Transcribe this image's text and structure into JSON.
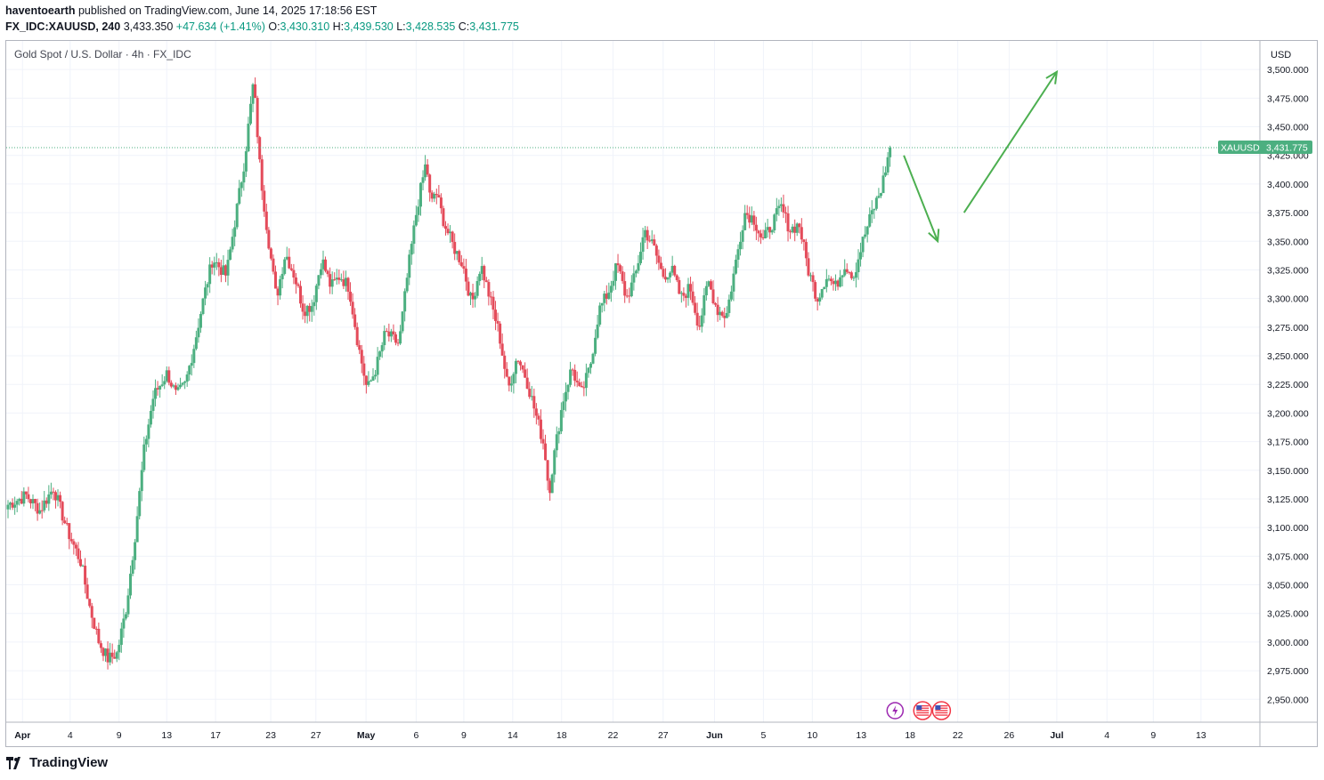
{
  "header": {
    "author": "haventoearth",
    "published_text": "published on TradingView.com, June 14, 2025 17:18:56 EST",
    "symbol_interval": "FX_IDC:XAUUSD, 240",
    "last": "3,433.350",
    "change": "+47.634 (+1.41%)",
    "o_label": "O:",
    "o": "3,430.310",
    "h_label": "H:",
    "h": "3,439.530",
    "l_label": "L:",
    "l": "3,428.535",
    "c_label": "C:",
    "c": "3,431.775"
  },
  "chart_title": "Gold Spot / U.S. Dollar · 4h · FX_IDC",
  "currency": "USD",
  "price_tag": {
    "symbol": "XAUUSD",
    "value": "3,431.775"
  },
  "footer_brand": "TradingView",
  "colors": {
    "up": "#089981",
    "down": "#f23645",
    "candle_up": "#4caf80",
    "candle_down": "#e44b5a",
    "grid": "#f0f3fa",
    "arrow": "#4caf50",
    "tag": "#4caf80",
    "event": "#9c27b0"
  },
  "icons": [
    "lightning-event-icon",
    "us-flag-event-icon",
    "us-flag-event-icon",
    "tradingview-logo-icon"
  ],
  "chart_data": {
    "type": "candlestick",
    "title": "Gold Spot / U.S. Dollar · 4h · FX_IDC",
    "y_ticks": [
      "3,500.000",
      "3,475.000",
      "3,450.000",
      "3,425.000",
      "3,400.000",
      "3,375.000",
      "3,350.000",
      "3,325.000",
      "3,300.000",
      "3,275.000",
      "3,250.000",
      "3,225.000",
      "3,200.000",
      "3,175.000",
      "3,150.000",
      "3,125.000",
      "3,100.000",
      "3,075.000",
      "3,050.000",
      "3,025.000",
      "3,000.000",
      "2,975.000",
      "2,950.000"
    ],
    "y_tick_values": [
      3500,
      3475,
      3450,
      3425,
      3400,
      3375,
      3350,
      3325,
      3300,
      3275,
      3250,
      3225,
      3200,
      3175,
      3150,
      3125,
      3100,
      3075,
      3050,
      3025,
      3000,
      2975,
      2950
    ],
    "x_ticks": [
      "Apr",
      "4",
      "9",
      "13",
      "17",
      "23",
      "27",
      "May",
      "6",
      "9",
      "14",
      "18",
      "22",
      "27",
      "Jun",
      "5",
      "10",
      "13",
      "18",
      "22",
      "26",
      "Jul",
      "4",
      "9",
      "13"
    ],
    "x_tick_bold": [
      "Apr",
      "May",
      "Jun",
      "Jul"
    ],
    "x_tick_fraction": [
      0.013,
      0.051,
      0.09,
      0.128,
      0.167,
      0.211,
      0.247,
      0.287,
      0.327,
      0.365,
      0.404,
      0.443,
      0.484,
      0.524,
      0.565,
      0.604,
      0.643,
      0.682,
      0.721,
      0.759,
      0.8,
      0.838,
      0.878,
      0.915,
      0.953
    ],
    "ylim": [
      2930,
      3525
    ],
    "last_price": 3431.775,
    "path_waypoints": [
      [
        0,
        3120
      ],
      [
        8,
        3128
      ],
      [
        14,
        3115
      ],
      [
        20,
        3135
      ],
      [
        26,
        3098
      ],
      [
        32,
        3070
      ],
      [
        36,
        3030
      ],
      [
        40,
        3000
      ],
      [
        44,
        2985
      ],
      [
        48,
        2990
      ],
      [
        52,
        3030
      ],
      [
        56,
        3095
      ],
      [
        60,
        3170
      ],
      [
        64,
        3215
      ],
      [
        70,
        3235
      ],
      [
        74,
        3215
      ],
      [
        78,
        3225
      ],
      [
        82,
        3260
      ],
      [
        86,
        3300
      ],
      [
        90,
        3335
      ],
      [
        96,
        3320
      ],
      [
        100,
        3370
      ],
      [
        104,
        3420
      ],
      [
        108,
        3490
      ],
      [
        111,
        3410
      ],
      [
        114,
        3360
      ],
      [
        118,
        3300
      ],
      [
        122,
        3340
      ],
      [
        126,
        3320
      ],
      [
        130,
        3290
      ],
      [
        134,
        3295
      ],
      [
        138,
        3335
      ],
      [
        142,
        3310
      ],
      [
        146,
        3320
      ],
      [
        150,
        3310
      ],
      [
        154,
        3260
      ],
      [
        158,
        3220
      ],
      [
        162,
        3240
      ],
      [
        166,
        3270
      ],
      [
        172,
        3260
      ],
      [
        176,
        3325
      ],
      [
        180,
        3380
      ],
      [
        184,
        3420
      ],
      [
        186,
        3380
      ],
      [
        188,
        3395
      ],
      [
        192,
        3365
      ],
      [
        196,
        3345
      ],
      [
        200,
        3330
      ],
      [
        204,
        3295
      ],
      [
        208,
        3330
      ],
      [
        212,
        3300
      ],
      [
        216,
        3270
      ],
      [
        220,
        3220
      ],
      [
        224,
        3250
      ],
      [
        228,
        3230
      ],
      [
        232,
        3200
      ],
      [
        236,
        3170
      ],
      [
        238,
        3130
      ],
      [
        240,
        3160
      ],
      [
        244,
        3210
      ],
      [
        248,
        3240
      ],
      [
        252,
        3215
      ],
      [
        256,
        3240
      ],
      [
        260,
        3290
      ],
      [
        264,
        3305
      ],
      [
        268,
        3330
      ],
      [
        272,
        3300
      ],
      [
        276,
        3320
      ],
      [
        280,
        3360
      ],
      [
        284,
        3345
      ],
      [
        288,
        3320
      ],
      [
        292,
        3325
      ],
      [
        296,
        3300
      ],
      [
        300,
        3310
      ],
      [
        304,
        3275
      ],
      [
        308,
        3315
      ],
      [
        312,
        3290
      ],
      [
        316,
        3285
      ],
      [
        320,
        3330
      ],
      [
        324,
        3375
      ],
      [
        328,
        3370
      ],
      [
        332,
        3350
      ],
      [
        336,
        3365
      ],
      [
        340,
        3380
      ],
      [
        344,
        3360
      ],
      [
        348,
        3365
      ],
      [
        352,
        3325
      ],
      [
        356,
        3300
      ],
      [
        360,
        3320
      ],
      [
        364,
        3310
      ],
      [
        368,
        3330
      ],
      [
        372,
        3320
      ],
      [
        376,
        3350
      ],
      [
        380,
        3375
      ],
      [
        384,
        3395
      ],
      [
        388,
        3431
      ]
    ],
    "candle_count": 390,
    "candle_span_fraction": [
      0.0,
      0.705
    ],
    "annotations": [
      {
        "type": "arrow",
        "from": [
          0.716,
          3425
        ],
        "to": [
          0.743,
          3350
        ]
      },
      {
        "type": "arrow",
        "from": [
          0.764,
          3375
        ],
        "to": [
          0.838,
          3498
        ]
      }
    ],
    "events": [
      {
        "type": "lightning",
        "x": 0.709
      },
      {
        "type": "us-flag",
        "x": 0.731
      },
      {
        "type": "us-flag",
        "x": 0.746
      }
    ]
  }
}
